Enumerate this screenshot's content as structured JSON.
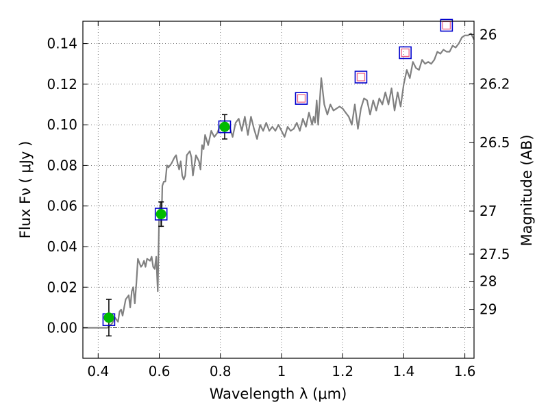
{
  "chart_data": {
    "type": "scatter",
    "xlabel": "Wavelength  λ (μm)",
    "ylabel": "Flux  Fν  ( μJy )",
    "y2label": "Magnitude (AB)",
    "xlim": [
      0.35,
      1.63
    ],
    "ylim": [
      -0.015,
      0.151
    ],
    "grid": true,
    "x_ticks": [
      0.4,
      0.6,
      0.8,
      1.0,
      1.2,
      1.4,
      1.6
    ],
    "x_tick_labels": [
      "0.4",
      "0.6",
      "0.8",
      "1",
      "1.2",
      "1.4",
      "1.6"
    ],
    "y_ticks": [
      0.0,
      0.02,
      0.04,
      0.06,
      0.08,
      0.1,
      0.12,
      0.14
    ],
    "y_tick_labels": [
      "0.00",
      "0.02",
      "0.04",
      "0.06",
      "0.08",
      "0.10",
      "0.12",
      "0.14"
    ],
    "y2_ticks": [
      {
        "label": "26",
        "flux": 0.1445
      },
      {
        "label": "26.2",
        "flux": 0.1202
      },
      {
        "label": "26.5",
        "flux": 0.0912
      },
      {
        "label": "27",
        "flux": 0.0575
      },
      {
        "label": "27.5",
        "flux": 0.0363
      },
      {
        "label": "28",
        "flux": 0.0229
      },
      {
        "label": "29",
        "flux": 0.0091
      }
    ],
    "colors": {
      "model": "#808080",
      "observed_fill": "#00bb00",
      "square_edge": "#0000cc",
      "predicted_edge": "#ee6688",
      "errorbar": "#000000"
    },
    "series": [
      {
        "role": "model_spectrum",
        "x": [
          0.35,
          0.39,
          0.43,
          0.445,
          0.455,
          0.465,
          0.47,
          0.475,
          0.48,
          0.49,
          0.5,
          0.505,
          0.51,
          0.515,
          0.52,
          0.525,
          0.53,
          0.535,
          0.54,
          0.545,
          0.55,
          0.555,
          0.56,
          0.57,
          0.575,
          0.58,
          0.585,
          0.59,
          0.595,
          0.6,
          0.605,
          0.607,
          0.61,
          0.615,
          0.62,
          0.625,
          0.63,
          0.64,
          0.65,
          0.655,
          0.66,
          0.665,
          0.67,
          0.675,
          0.68,
          0.685,
          0.69,
          0.695,
          0.7,
          0.705,
          0.71,
          0.715,
          0.72,
          0.73,
          0.735,
          0.74,
          0.745,
          0.75,
          0.76,
          0.77,
          0.78,
          0.79,
          0.8,
          0.81,
          0.82,
          0.83,
          0.84,
          0.85,
          0.86,
          0.87,
          0.88,
          0.89,
          0.9,
          0.91,
          0.92,
          0.93,
          0.94,
          0.95,
          0.96,
          0.97,
          0.98,
          0.99,
          1.0,
          1.01,
          1.02,
          1.03,
          1.04,
          1.05,
          1.06,
          1.07,
          1.08,
          1.09,
          1.1,
          1.105,
          1.11,
          1.115,
          1.12,
          1.13,
          1.14,
          1.15,
          1.16,
          1.17,
          1.18,
          1.19,
          1.2,
          1.21,
          1.22,
          1.23,
          1.24,
          1.25,
          1.26,
          1.27,
          1.28,
          1.29,
          1.3,
          1.31,
          1.32,
          1.33,
          1.34,
          1.35,
          1.36,
          1.37,
          1.38,
          1.39,
          1.4,
          1.41,
          1.42,
          1.43,
          1.44,
          1.45,
          1.46,
          1.47,
          1.48,
          1.49,
          1.5,
          1.51,
          1.52,
          1.53,
          1.54,
          1.55,
          1.56,
          1.57,
          1.58,
          1.59,
          1.6,
          1.61,
          1.62,
          1.63
        ],
        "y": [
          0.0,
          0.0,
          0.0,
          0.002,
          0.005,
          0.003,
          0.008,
          0.009,
          0.006,
          0.014,
          0.016,
          0.01,
          0.018,
          0.02,
          0.012,
          0.022,
          0.034,
          0.032,
          0.03,
          0.031,
          0.033,
          0.03,
          0.034,
          0.033,
          0.035,
          0.03,
          0.029,
          0.035,
          0.018,
          0.058,
          0.062,
          0.05,
          0.07,
          0.072,
          0.072,
          0.08,
          0.079,
          0.081,
          0.084,
          0.085,
          0.081,
          0.078,
          0.082,
          0.075,
          0.073,
          0.075,
          0.085,
          0.086,
          0.087,
          0.084,
          0.075,
          0.08,
          0.085,
          0.082,
          0.078,
          0.09,
          0.088,
          0.095,
          0.09,
          0.097,
          0.094,
          0.096,
          0.1,
          0.098,
          0.101,
          0.099,
          0.094,
          0.101,
          0.103,
          0.097,
          0.104,
          0.095,
          0.104,
          0.098,
          0.093,
          0.1,
          0.097,
          0.101,
          0.097,
          0.099,
          0.097,
          0.1,
          0.097,
          0.094,
          0.099,
          0.097,
          0.098,
          0.101,
          0.097,
          0.103,
          0.099,
          0.106,
          0.1,
          0.104,
          0.101,
          0.112,
          0.1,
          0.123,
          0.11,
          0.105,
          0.11,
          0.107,
          0.108,
          0.109,
          0.108,
          0.106,
          0.104,
          0.1,
          0.11,
          0.098,
          0.108,
          0.113,
          0.112,
          0.105,
          0.112,
          0.107,
          0.113,
          0.11,
          0.116,
          0.11,
          0.118,
          0.107,
          0.116,
          0.109,
          0.12,
          0.127,
          0.123,
          0.131,
          0.128,
          0.127,
          0.132,
          0.13,
          0.131,
          0.13,
          0.132,
          0.136,
          0.135,
          0.137,
          0.136,
          0.136,
          0.139,
          0.138,
          0.14,
          0.143,
          0.144,
          0.144,
          0.145,
          0.142
        ]
      },
      {
        "role": "observed_photometry",
        "x": [
          0.435,
          0.606,
          0.814
        ],
        "y": [
          0.005,
          0.056,
          0.099
        ],
        "yerr": [
          0.009,
          0.006,
          0.006
        ]
      },
      {
        "role": "model_band_flux",
        "x": [
          0.435,
          0.606,
          0.814,
          1.065,
          1.26,
          1.405,
          1.54
        ],
        "y": [
          0.004,
          0.056,
          0.099,
          0.113,
          0.1235,
          0.1355,
          0.149
        ]
      },
      {
        "role": "predicted_band_flux",
        "x": [
          1.065,
          1.26,
          1.405,
          1.54
        ],
        "y": [
          0.113,
          0.1235,
          0.1355,
          0.149
        ]
      }
    ]
  }
}
